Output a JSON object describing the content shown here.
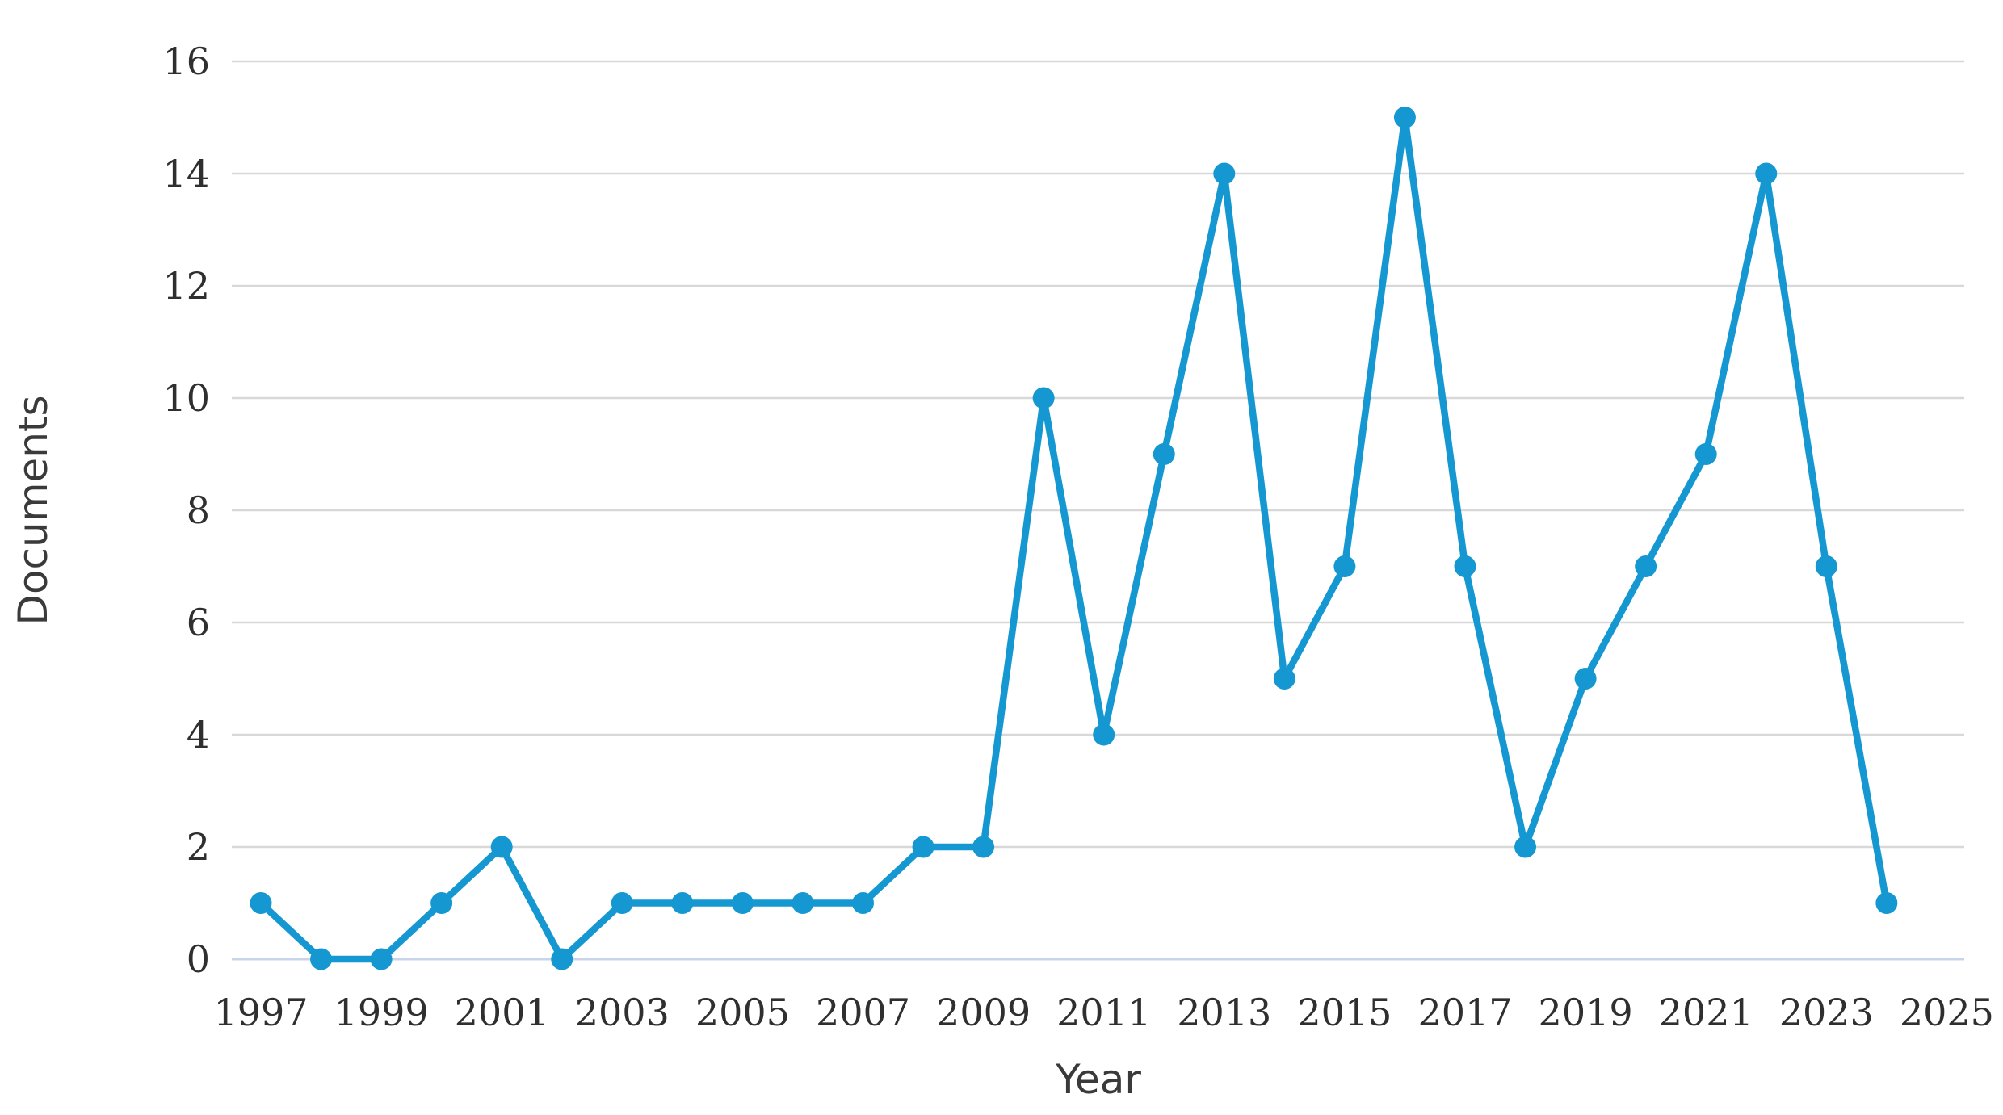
{
  "chart_data": {
    "type": "line",
    "title": "",
    "xlabel": "Year",
    "ylabel": "Documents",
    "x": [
      1997,
      1998,
      1999,
      2000,
      2001,
      2002,
      2003,
      2004,
      2005,
      2006,
      2007,
      2008,
      2009,
      2010,
      2011,
      2012,
      2013,
      2014,
      2015,
      2016,
      2017,
      2018,
      2019,
      2020,
      2021,
      2022,
      2023,
      2024
    ],
    "series": [
      {
        "name": "Documents",
        "values": [
          1,
          0,
          0,
          1,
          2,
          0,
          1,
          1,
          1,
          1,
          1,
          2,
          2,
          10,
          4,
          9,
          14,
          5,
          7,
          15,
          7,
          2,
          5,
          7,
          9,
          14,
          7,
          1
        ]
      }
    ],
    "xticks": [
      1997,
      1999,
      2001,
      2003,
      2005,
      2007,
      2009,
      2011,
      2013,
      2015,
      2017,
      2019,
      2021,
      2023,
      2025
    ],
    "yticks": [
      0,
      2,
      4,
      6,
      8,
      10,
      12,
      14,
      16
    ],
    "xlim": [
      1996.5,
      2025.6
    ],
    "ylim": [
      0,
      16
    ],
    "grid": "horizontal",
    "legend": "none",
    "colors": {
      "line": "#1598d2",
      "marker": "#1598d2",
      "gridline": "#d8d8d8",
      "zero_line": "#c7d4ea",
      "tick_text": "#2f2f2f",
      "axis_title_text": "#3a3a3a",
      "background": "#ffffff"
    }
  }
}
